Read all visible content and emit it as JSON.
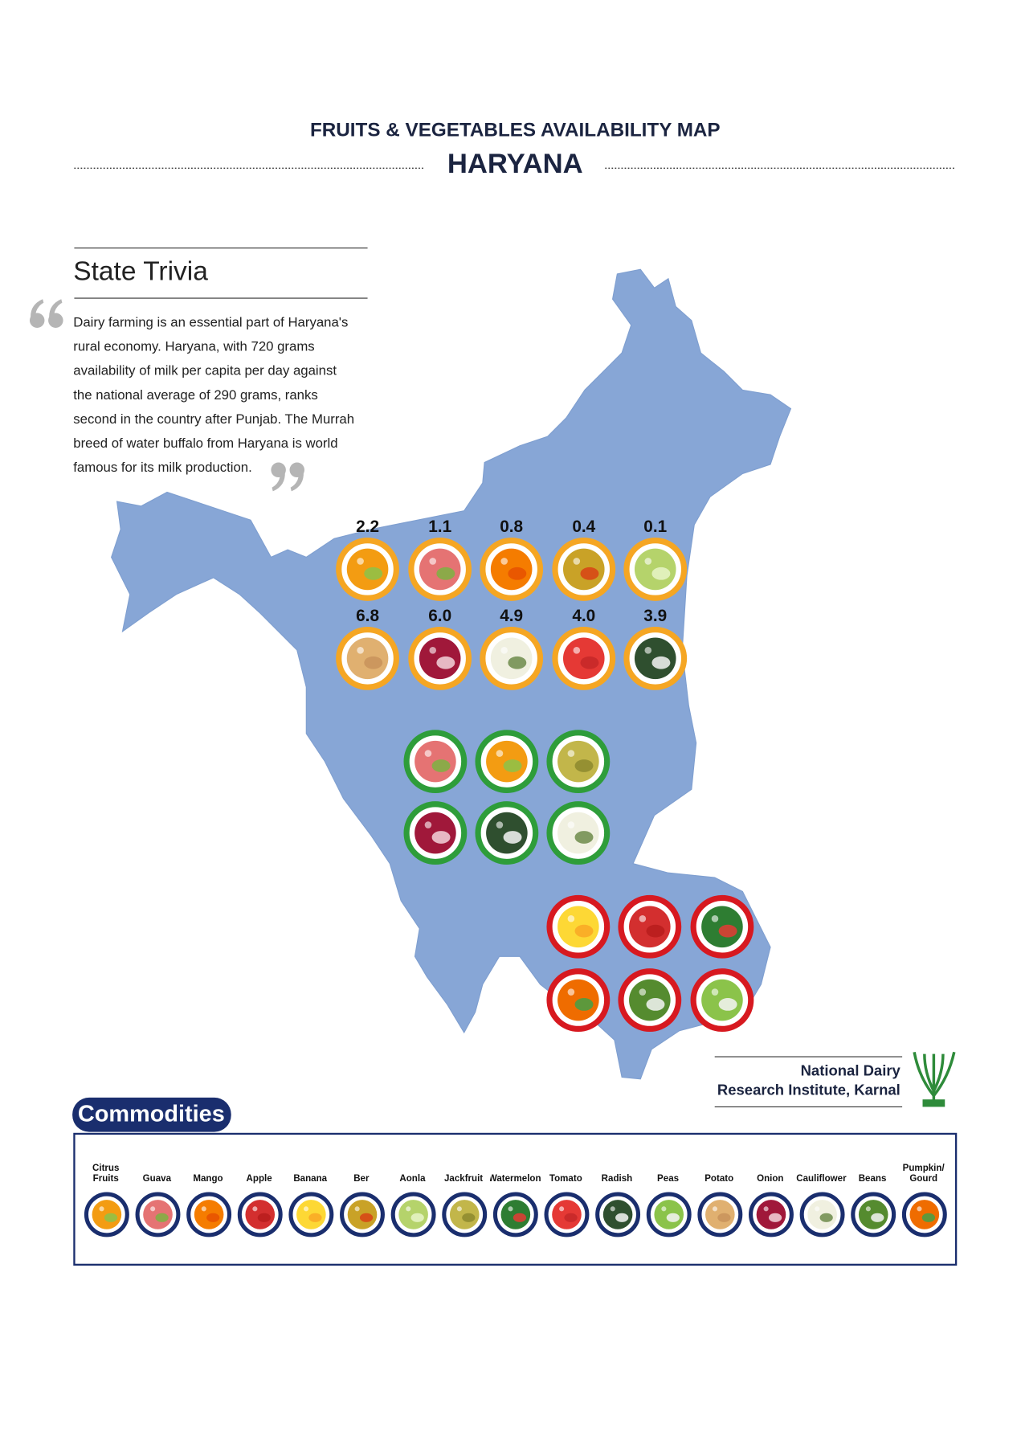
{
  "header": {
    "title": "FRUITS & VEGETABLES AVAILABILITY MAP",
    "state": "HARYANA"
  },
  "trivia": {
    "title": "State Trivia",
    "lines": [
      "Dairy farming is an essential part of Haryana's",
      "rural economy. Haryana, with 720 grams",
      "availability of milk per capita per day against",
      "the national average of 290 grams, ranks",
      "second in the country after Punjab. The Murrah",
      "breed of water buffalo from Haryana is world",
      "famous for its milk production."
    ]
  },
  "map": {
    "surplus_rows": [
      [
        "2.2",
        "1.1",
        "0.8",
        "0.4",
        "0.1"
      ],
      [
        "6.8",
        "6.0",
        "4.9",
        "4.0",
        "3.9"
      ]
    ]
  },
  "institute": {
    "lines": [
      "National Dairy",
      "Research Institute, Karnal"
    ]
  },
  "legend": {
    "title": "Commodities",
    "items": [
      "Citrus Fruits",
      "Guava",
      "Mango",
      "Apple",
      "Banana",
      "Ber",
      "Aonla",
      "Jackfruit",
      "Watermelon",
      "Tomato",
      "Radish",
      "Peas",
      "Potato",
      "Onion",
      "Cauliflower",
      "Beans",
      "Pumpkin/ Gourd"
    ]
  }
}
